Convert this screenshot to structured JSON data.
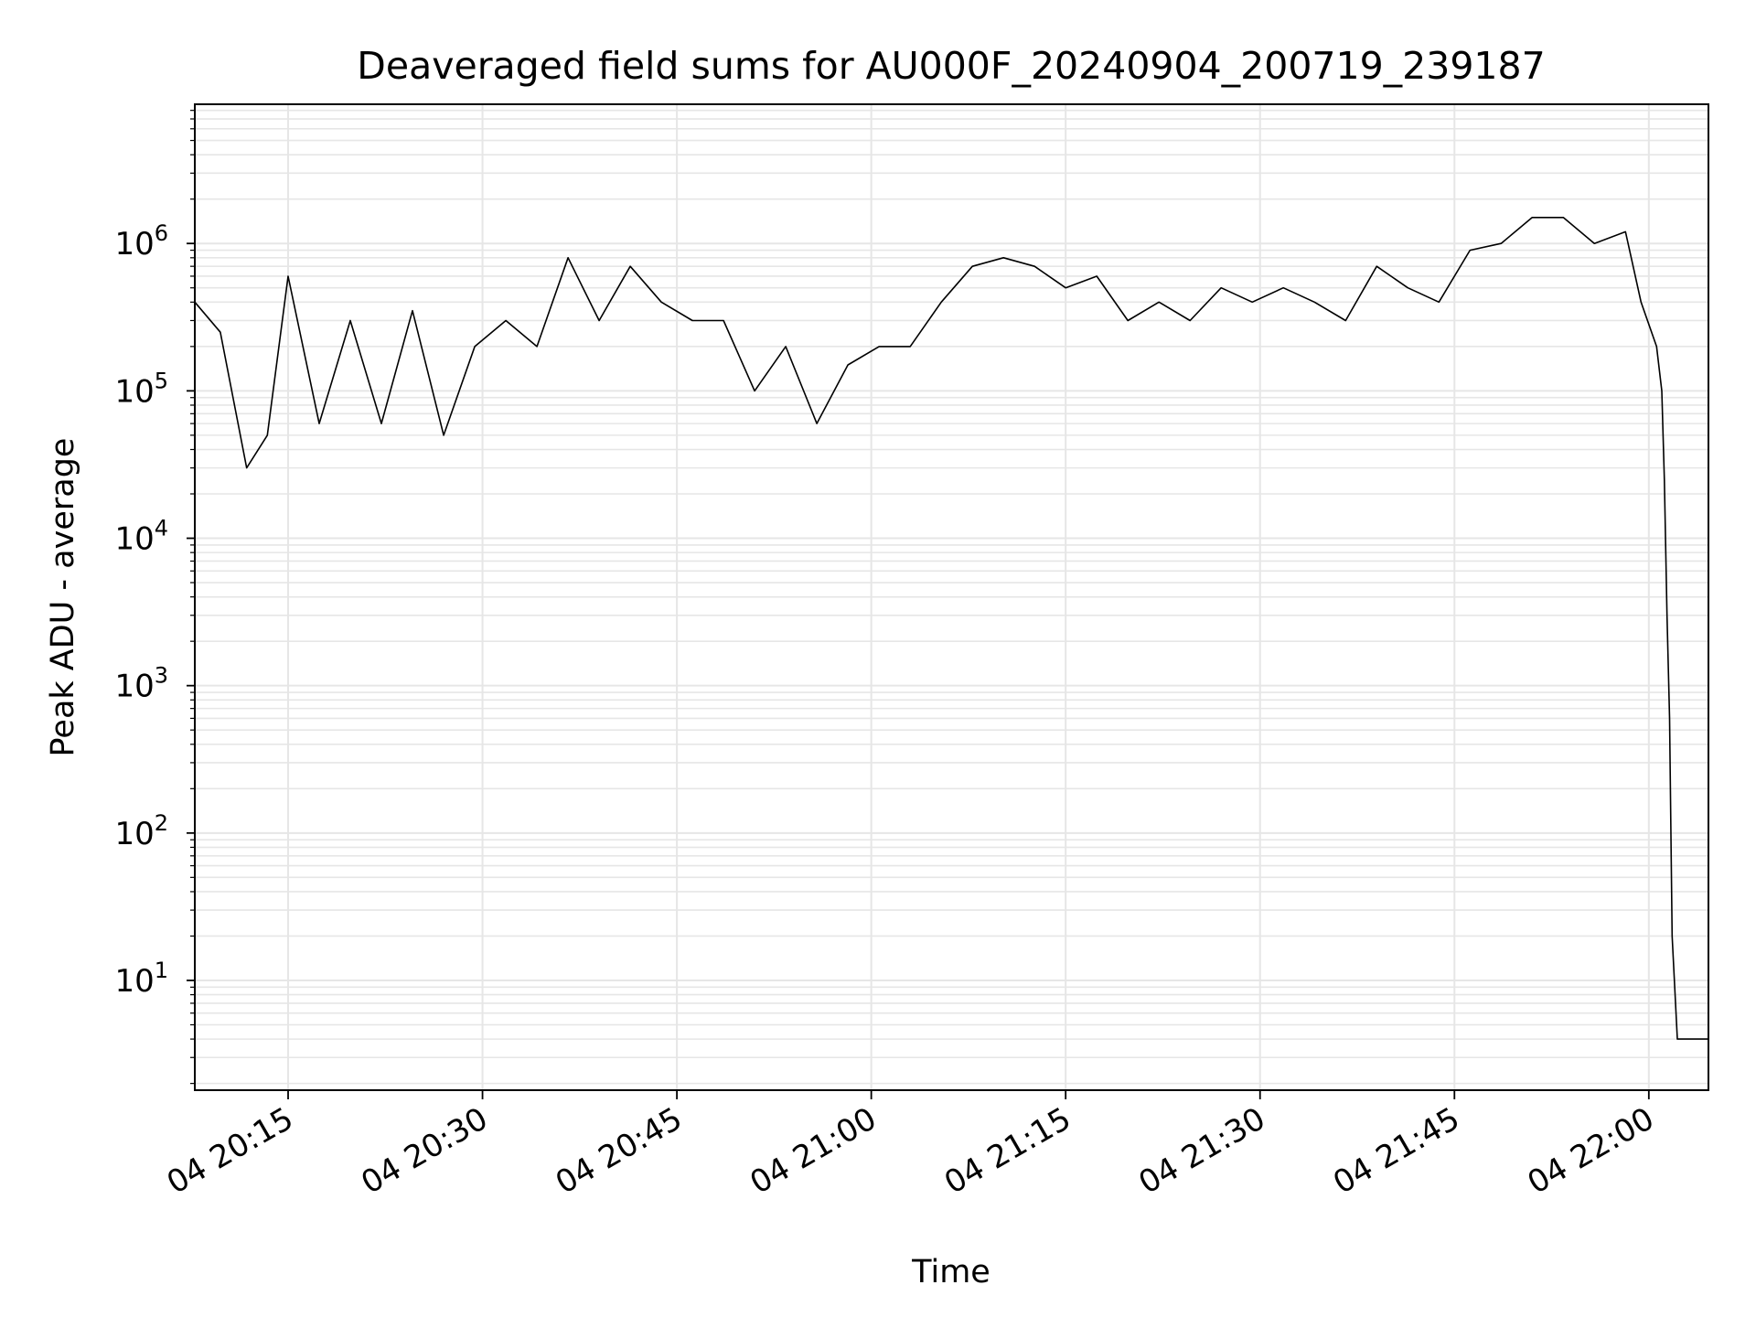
{
  "chart_data": {
    "type": "line",
    "title": "Deaveraged field sums for AU000F_20240904_200719_239187",
    "xlabel": "Time",
    "ylabel": "Peak ADU - average",
    "x_range": [
      "2024-09-04 20:07:48",
      "2024-09-04 22:04:36"
    ],
    "y_range": [
      1.8,
      8800000
    ],
    "y_scale": "log",
    "grid": "major and minor",
    "line_color": "#000000",
    "grid_color": "#e6e6e6",
    "x_ticks": [
      "04 20:15",
      "04 20:30",
      "04 20:45",
      "04 21:00",
      "04 21:15",
      "04 21:30",
      "04 21:45",
      "04 22:00"
    ],
    "y_ticks": [
      {
        "value": 10,
        "base": "10",
        "exp": "1"
      },
      {
        "value": 100,
        "base": "10",
        "exp": "2"
      },
      {
        "value": 1000,
        "base": "10",
        "exp": "3"
      },
      {
        "value": 10000,
        "base": "10",
        "exp": "4"
      },
      {
        "value": 100000,
        "base": "10",
        "exp": "5"
      },
      {
        "value": 1000000,
        "base": "10",
        "exp": "6"
      }
    ],
    "series": [
      {
        "x": [
          "2024-09-04 20:07:48",
          "2024-09-04 20:09:46",
          "2024-09-04 20:11:48",
          "2024-09-04 20:13:24",
          "2024-09-04 20:15:00",
          "2024-09-04 20:17:24",
          "2024-09-04 20:19:48",
          "2024-09-04 20:22:12",
          "2024-09-04 20:24:36",
          "2024-09-04 20:27:00",
          "2024-09-04 20:29:24",
          "2024-09-04 20:31:48",
          "2024-09-04 20:34:12",
          "2024-09-04 20:36:36",
          "2024-09-04 20:39:00",
          "2024-09-04 20:41:24",
          "2024-09-04 20:43:48",
          "2024-09-04 20:46:12",
          "2024-09-04 20:48:36",
          "2024-09-04 20:51:00",
          "2024-09-04 20:53:24",
          "2024-09-04 20:55:48",
          "2024-09-04 20:58:12",
          "2024-09-04 21:00:36",
          "2024-09-04 21:03:00",
          "2024-09-04 21:05:24",
          "2024-09-04 21:07:48",
          "2024-09-04 21:10:12",
          "2024-09-04 21:12:36",
          "2024-09-04 21:15:00",
          "2024-09-04 21:17:24",
          "2024-09-04 21:19:48",
          "2024-09-04 21:22:12",
          "2024-09-04 21:24:36",
          "2024-09-04 21:27:00",
          "2024-09-04 21:29:24",
          "2024-09-04 21:31:48",
          "2024-09-04 21:34:12",
          "2024-09-04 21:36:36",
          "2024-09-04 21:39:00",
          "2024-09-04 21:41:24",
          "2024-09-04 21:43:48",
          "2024-09-04 21:46:12",
          "2024-09-04 21:48:36",
          "2024-09-04 21:51:00",
          "2024-09-04 21:53:24",
          "2024-09-04 21:55:48",
          "2024-09-04 21:58:12",
          "2024-09-04 21:59:24",
          "2024-09-04 22:00:36",
          "2024-09-04 22:01:00",
          "2024-09-04 22:01:12",
          "2024-09-04 22:01:24",
          "2024-09-04 22:01:36",
          "2024-09-04 22:01:48",
          "2024-09-04 22:02:12",
          "2024-09-04 22:03:00",
          "2024-09-04 22:04:36"
        ],
        "y": [
          400000,
          250000,
          30000,
          50000,
          600000,
          60000,
          300000,
          60000,
          350000,
          50000,
          200000,
          300000,
          200000,
          800000,
          300000,
          700000,
          400000,
          300000,
          300000,
          100000,
          200000,
          60000,
          150000,
          200000,
          200000,
          400000,
          700000,
          800000,
          700000,
          500000,
          600000,
          300000,
          400000,
          300000,
          500000,
          400000,
          500000,
          400000,
          300000,
          700000,
          500000,
          400000,
          900000,
          1000000,
          1500000,
          1500000,
          1000000,
          1200000,
          400000,
          200000,
          100000,
          25000,
          3000,
          600,
          20,
          4,
          4,
          4
        ]
      }
    ]
  }
}
